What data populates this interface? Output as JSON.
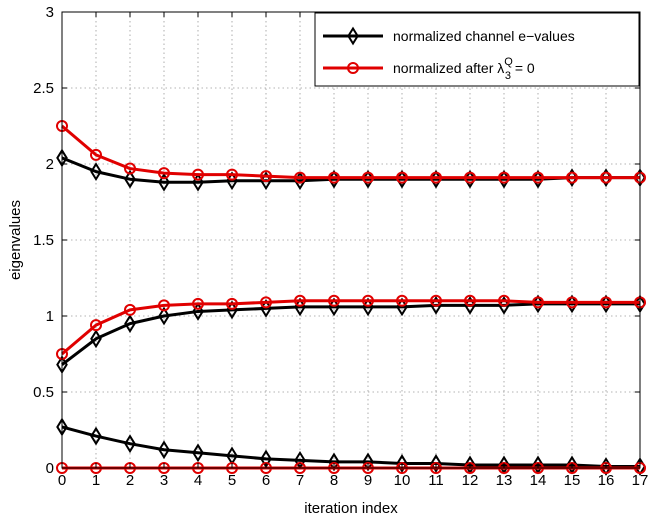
{
  "chart_data": {
    "type": "line",
    "xlabel": "iteration index",
    "ylabel": "eigenvalues",
    "xlim": [
      0,
      17
    ],
    "ylim": [
      0,
      3
    ],
    "x_ticks": [
      "0",
      "1",
      "2",
      "3",
      "4",
      "5",
      "6",
      "7",
      "8",
      "9",
      "10",
      "11",
      "12",
      "13",
      "14",
      "15",
      "16",
      "17"
    ],
    "y_ticks": [
      "0",
      "0.5",
      "1",
      "1.5",
      "2",
      "2.5",
      "3"
    ],
    "grid": true,
    "legend_position": "top-right",
    "x": [
      0,
      1,
      2,
      3,
      4,
      5,
      6,
      7,
      8,
      9,
      10,
      11,
      12,
      13,
      14,
      15,
      16,
      17
    ],
    "series": [
      {
        "name": "normalized channel e−values",
        "legend_id": 0,
        "color": "#000000",
        "marker": "diamond",
        "values": [
          2.04,
          1.95,
          1.9,
          1.88,
          1.88,
          1.89,
          1.89,
          1.89,
          1.9,
          1.9,
          1.9,
          1.9,
          1.9,
          1.9,
          1.9,
          1.91,
          1.91,
          1.91
        ]
      },
      {
        "legend_id": 0,
        "color": "#000000",
        "marker": "diamond",
        "values": [
          0.68,
          0.85,
          0.95,
          1.0,
          1.03,
          1.04,
          1.05,
          1.06,
          1.06,
          1.06,
          1.06,
          1.07,
          1.07,
          1.07,
          1.08,
          1.08,
          1.08,
          1.08
        ]
      },
      {
        "legend_id": 0,
        "color": "#000000",
        "marker": "diamond",
        "values": [
          0.27,
          0.21,
          0.16,
          0.12,
          0.1,
          0.08,
          0.06,
          0.05,
          0.04,
          0.04,
          0.03,
          0.03,
          0.02,
          0.02,
          0.02,
          0.02,
          0.01,
          0.01
        ]
      },
      {
        "name": "normalized after λ",
        "legend_id": 1,
        "color": "#e00000",
        "marker": "circle",
        "values": [
          2.25,
          2.06,
          1.97,
          1.94,
          1.93,
          1.93,
          1.92,
          1.91,
          1.91,
          1.91,
          1.91,
          1.91,
          1.91,
          1.91,
          1.91,
          1.91,
          1.91,
          1.91
        ]
      },
      {
        "legend_id": 1,
        "color": "#e00000",
        "marker": "circle",
        "values": [
          0.75,
          0.94,
          1.04,
          1.07,
          1.08,
          1.08,
          1.09,
          1.1,
          1.1,
          1.1,
          1.1,
          1.1,
          1.1,
          1.1,
          1.09,
          1.09,
          1.09,
          1.09
        ]
      },
      {
        "legend_id": 1,
        "color": "#e00000",
        "marker": "circle",
        "values": [
          0,
          0,
          0,
          0,
          0,
          0,
          0,
          0,
          0,
          0,
          0,
          0,
          0,
          0,
          0,
          0,
          0,
          0
        ]
      }
    ],
    "legend": [
      {
        "text": "normalized channel e−values",
        "color": "#000000",
        "marker": "diamond"
      },
      {
        "text": "normalized after λ",
        "sub": "3",
        "sup": "Q",
        "tail": " = 0",
        "color": "#e00000",
        "marker": "circle"
      }
    ]
  }
}
